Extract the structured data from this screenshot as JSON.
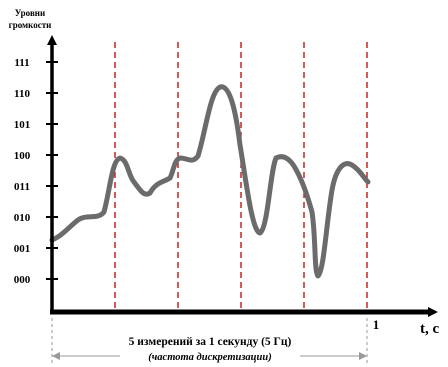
{
  "y_axis_title": [
    "Уровни",
    "громкости"
  ],
  "levels": [
    "111",
    "110",
    "101",
    "100",
    "011",
    "010",
    "001",
    "000"
  ],
  "x_axis_label": "t, с",
  "x_tick_label": "1",
  "caption_line1": "5 измерений за 1 секунду (5 Гц)",
  "caption_line2": "(частота дискретизации)",
  "sampling": {
    "count": 5,
    "period_s": 0.2,
    "frequency_hz": 5
  },
  "colors": {
    "axis": "#000000",
    "signal": "#6b6b6b",
    "sampling_lines": "#c00000",
    "bracket": "#999999"
  }
}
